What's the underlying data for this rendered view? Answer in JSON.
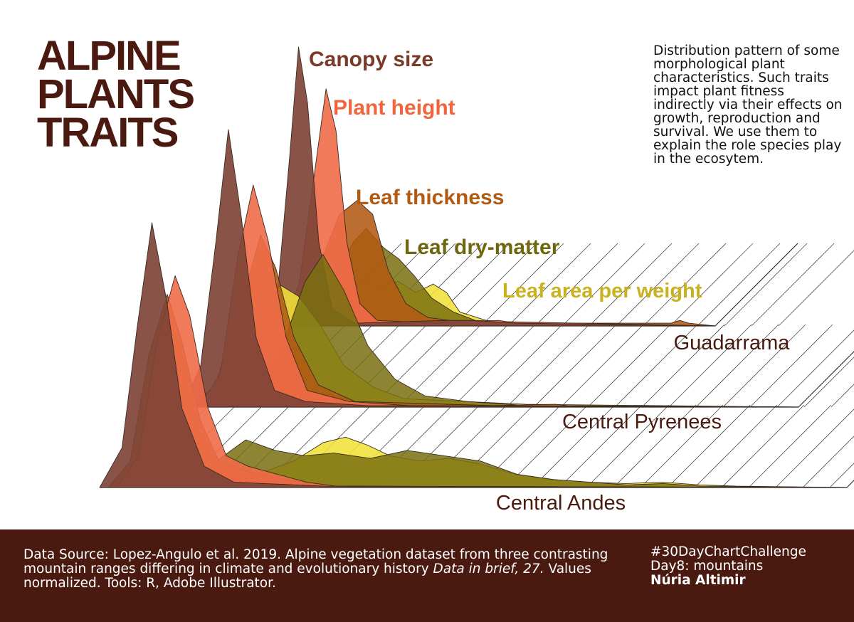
{
  "title_lines": [
    "ALPINE",
    "PLANTS",
    "TRAITS"
  ],
  "description": "Distribution pattern of some  morphological plant characteristics. Such traits impact plant fitness indirectly via their effects on growth, reproduction and survival. We use them to explain the role species play in the ecosytem.",
  "footer": {
    "source_prefix": "Data Source:  Lopez-Angulo et al. 2019. Alpine vegetation dataset from three contrasting mountain ranges differing in climate and evolutionary history ",
    "source_journal": "Data in brief, 27.",
    "source_suffix": " Values normalized. Tools: R, Adobe Illustrator.",
    "hashtag": "#30DayChartChallenge",
    "day": "Day8: mountains",
    "author": "Núria Altimir"
  },
  "chart_data": {
    "type": "area",
    "subtype": "ridgeline density (3 stacked perspective panels)",
    "x_range": [
      0,
      1
    ],
    "y_range": [
      0,
      1
    ],
    "axis_ticks": "none",
    "grid": false,
    "legend": "direct labels beside peaks",
    "traits": [
      {
        "key": "canopy",
        "label": "Canopy size",
        "color": "#7f4438"
      },
      {
        "key": "height",
        "label": "Plant height",
        "color": "#f06c48"
      },
      {
        "key": "thickness",
        "label": "Leaf thickness",
        "color": "#b25a12"
      },
      {
        "key": "drymatter",
        "label": "Leaf dry-matter",
        "color": "#7a7010"
      },
      {
        "key": "area",
        "label": "Leaf area per weight",
        "color": "#f1e139"
      }
    ],
    "mountains": [
      {
        "name": "Guadarrama",
        "series": {
          "canopy": [
            [
              0.0,
              0
            ],
            [
              0.03,
              0.15
            ],
            [
              0.055,
              0.6
            ],
            [
              0.075,
              1.0
            ],
            [
              0.095,
              0.8
            ],
            [
              0.12,
              0.3
            ],
            [
              0.15,
              0.06
            ],
            [
              0.2,
              0.01
            ],
            [
              0.4,
              0.02
            ],
            [
              0.46,
              0.02
            ],
            [
              0.56,
              0.01
            ],
            [
              1,
              0
            ]
          ],
          "height": [
            [
              0.0,
              0
            ],
            [
              0.04,
              0.15
            ],
            [
              0.08,
              0.6
            ],
            [
              0.102,
              0.85
            ],
            [
              0.125,
              0.7
            ],
            [
              0.15,
              0.3
            ],
            [
              0.18,
              0.08
            ],
            [
              0.22,
              0.02
            ],
            [
              0.35,
              0.01
            ],
            [
              0.5,
              0.02
            ],
            [
              0.52,
              0.015
            ],
            [
              1,
              0
            ]
          ],
          "thickness": [
            [
              0.0,
              0
            ],
            [
              0.05,
              0.05
            ],
            [
              0.1,
              0.2
            ],
            [
              0.15,
              0.4
            ],
            [
              0.19,
              0.45
            ],
            [
              0.225,
              0.4
            ],
            [
              0.26,
              0.2
            ],
            [
              0.3,
              0.08
            ],
            [
              0.35,
              0.03
            ],
            [
              0.45,
              0.01
            ],
            [
              0.9,
              0.01
            ],
            [
              0.92,
              0.02
            ],
            [
              0.94,
              0.01
            ],
            [
              1,
              0
            ]
          ],
          "drymatter": [
            [
              0.0,
              0
            ],
            [
              0.08,
              0.05
            ],
            [
              0.13,
              0.18
            ],
            [
              0.17,
              0.3
            ],
            [
              0.2,
              0.35
            ],
            [
              0.24,
              0.28
            ],
            [
              0.275,
              0.24
            ],
            [
              0.31,
              0.18
            ],
            [
              0.35,
              0.1
            ],
            [
              0.4,
              0.05
            ],
            [
              0.45,
              0.02
            ],
            [
              0.6,
              0.01
            ],
            [
              1,
              0
            ]
          ],
          "area": [
            [
              0.0,
              0
            ],
            [
              0.1,
              0.04
            ],
            [
              0.15,
              0.12
            ],
            [
              0.2,
              0.16
            ],
            [
              0.24,
              0.14
            ],
            [
              0.28,
              0.16
            ],
            [
              0.32,
              0.12
            ],
            [
              0.36,
              0.15
            ],
            [
              0.39,
              0.12
            ],
            [
              0.42,
              0.05
            ],
            [
              0.48,
              0.02
            ],
            [
              0.55,
              0.01
            ],
            [
              1,
              0
            ]
          ]
        }
      },
      {
        "name": "Central Pyrenees",
        "series": {
          "canopy": [
            [
              0.0,
              0
            ],
            [
              0.03,
              0.15
            ],
            [
              0.055,
              0.6
            ],
            [
              0.075,
              1.0
            ],
            [
              0.095,
              0.7
            ],
            [
              0.12,
              0.25
            ],
            [
              0.15,
              0.06
            ],
            [
              0.2,
              0.02
            ],
            [
              0.3,
              0.005
            ],
            [
              1,
              0
            ]
          ],
          "height": [
            [
              0.0,
              0
            ],
            [
              0.035,
              0.12
            ],
            [
              0.065,
              0.55
            ],
            [
              0.09,
              0.8
            ],
            [
              0.115,
              0.6
            ],
            [
              0.145,
              0.25
            ],
            [
              0.18,
              0.06
            ],
            [
              0.25,
              0.02
            ],
            [
              0.35,
              0.005
            ],
            [
              1,
              0
            ]
          ],
          "thickness": [
            [
              0.0,
              0
            ],
            [
              0.04,
              0.08
            ],
            [
              0.08,
              0.35
            ],
            [
              0.115,
              0.62
            ],
            [
              0.14,
              0.5
            ],
            [
              0.17,
              0.25
            ],
            [
              0.21,
              0.08
            ],
            [
              0.27,
              0.02
            ],
            [
              0.5,
              0.005
            ],
            [
              0.6,
              0.01
            ],
            [
              0.62,
              0.005
            ],
            [
              1,
              0
            ]
          ],
          "drymatter": [
            [
              0.0,
              0
            ],
            [
              0.08,
              0.05
            ],
            [
              0.14,
              0.2
            ],
            [
              0.18,
              0.45
            ],
            [
              0.21,
              0.55
            ],
            [
              0.245,
              0.42
            ],
            [
              0.285,
              0.22
            ],
            [
              0.33,
              0.1
            ],
            [
              0.38,
              0.04
            ],
            [
              0.45,
              0.02
            ],
            [
              0.55,
              0.005
            ],
            [
              1,
              0
            ]
          ],
          "area": [
            [
              0.0,
              0
            ],
            [
              0.07,
              0.1
            ],
            [
              0.11,
              0.32
            ],
            [
              0.145,
              0.44
            ],
            [
              0.175,
              0.4
            ],
            [
              0.21,
              0.3
            ],
            [
              0.25,
              0.15
            ],
            [
              0.3,
              0.07
            ],
            [
              0.35,
              0.03
            ],
            [
              0.45,
              0.02
            ],
            [
              0.55,
              0.01
            ],
            [
              1,
              0
            ]
          ]
        }
      },
      {
        "name": "Central Andes",
        "series": {
          "canopy": [
            [
              0.0,
              0
            ],
            [
              0.03,
              0.15
            ],
            [
              0.05,
              0.6
            ],
            [
              0.07,
              1.0
            ],
            [
              0.09,
              0.7
            ],
            [
              0.11,
              0.3
            ],
            [
              0.14,
              0.08
            ],
            [
              0.18,
              0.02
            ],
            [
              0.3,
              0.005
            ],
            [
              1,
              0
            ]
          ],
          "height": [
            [
              0.0,
              0
            ],
            [
              0.03,
              0.12
            ],
            [
              0.055,
              0.55
            ],
            [
              0.08,
              0.8
            ],
            [
              0.1,
              0.65
            ],
            [
              0.125,
              0.3
            ],
            [
              0.15,
              0.12
            ],
            [
              0.18,
              0.08
            ],
            [
              0.22,
              0.05
            ],
            [
              0.26,
              0.02
            ],
            [
              0.3,
              0.005
            ],
            [
              1,
              0
            ]
          ],
          "thickness": [
            [
              0.0,
              0
            ],
            [
              0.03,
              0.1
            ],
            [
              0.055,
              0.5
            ],
            [
              0.08,
              0.73
            ],
            [
              0.1,
              0.55
            ],
            [
              0.125,
              0.25
            ],
            [
              0.15,
              0.1
            ],
            [
              0.19,
              0.06
            ],
            [
              0.24,
              0.03
            ],
            [
              0.3,
              0.005
            ],
            [
              1,
              0
            ]
          ],
          "drymatter": [
            [
              0.0,
              0
            ],
            [
              0.1,
              0.02
            ],
            [
              0.14,
              0.1
            ],
            [
              0.18,
              0.18
            ],
            [
              0.22,
              0.14
            ],
            [
              0.26,
              0.12
            ],
            [
              0.3,
              0.13
            ],
            [
              0.35,
              0.11
            ],
            [
              0.4,
              0.14
            ],
            [
              0.45,
              0.12
            ],
            [
              0.5,
              0.1
            ],
            [
              0.55,
              0.05
            ],
            [
              0.6,
              0.03
            ],
            [
              0.65,
              0.02
            ],
            [
              0.7,
              0.01
            ],
            [
              0.75,
              0.015
            ],
            [
              0.8,
              0.005
            ],
            [
              1,
              0
            ]
          ],
          "area": [
            [
              0.0,
              0
            ],
            [
              0.15,
              0.02
            ],
            [
              0.2,
              0.05
            ],
            [
              0.25,
              0.1
            ],
            [
              0.29,
              0.17
            ],
            [
              0.32,
              0.19
            ],
            [
              0.35,
              0.16
            ],
            [
              0.38,
              0.12
            ],
            [
              0.42,
              0.1
            ],
            [
              0.46,
              0.11
            ],
            [
              0.5,
              0.09
            ],
            [
              0.55,
              0.05
            ],
            [
              0.6,
              0.03
            ],
            [
              0.65,
              0.02
            ],
            [
              0.7,
              0.015
            ],
            [
              0.75,
              0.02
            ],
            [
              0.8,
              0.01
            ],
            [
              0.85,
              0.005
            ],
            [
              1,
              0
            ]
          ]
        }
      }
    ]
  }
}
